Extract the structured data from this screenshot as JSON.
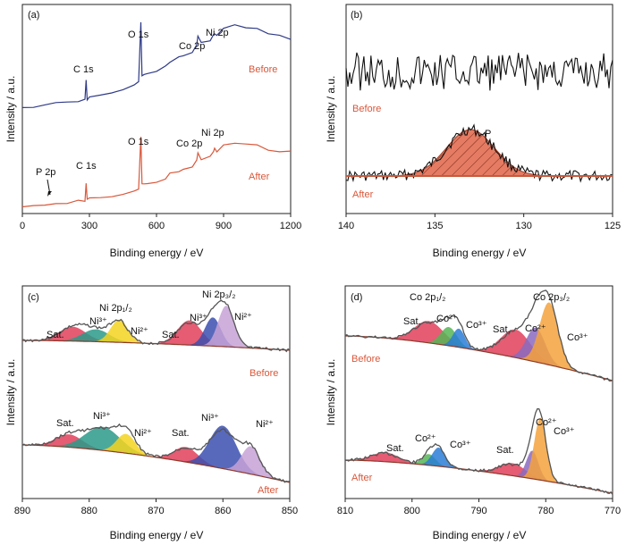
{
  "chart_data": [
    {
      "id": "a",
      "panel_label": "(a)",
      "type": "line",
      "xlabel": "Binding energy / eV",
      "ylabel": "Intensity / a.u.",
      "xlim": [
        0,
        1200
      ],
      "xticks": [
        "0",
        "300",
        "600",
        "900",
        "1200"
      ],
      "series": [
        {
          "name": "Before",
          "color": "#2e3a87",
          "x": [
            0,
            50,
            100,
            150,
            200,
            250,
            280,
            285,
            290,
            300,
            350,
            400,
            450,
            500,
            520,
            530,
            535,
            545,
            560,
            600,
            640,
            660,
            700,
            720,
            760,
            780,
            785,
            800,
            840,
            855,
            860,
            870,
            900,
            950,
            1000,
            1050,
            1100,
            1150,
            1200
          ],
          "y": [
            0.05,
            0.06,
            0.07,
            0.09,
            0.1,
            0.12,
            0.13,
            0.35,
            0.14,
            0.16,
            0.19,
            0.22,
            0.26,
            0.3,
            0.33,
            1.0,
            0.4,
            0.42,
            0.42,
            0.46,
            0.5,
            0.56,
            0.6,
            0.62,
            0.66,
            0.75,
            0.85,
            0.78,
            0.8,
            0.86,
            0.88,
            0.84,
            0.92,
            0.97,
            0.95,
            0.92,
            0.88,
            0.86,
            0.82
          ]
        },
        {
          "name": "After",
          "color": "#d9583b",
          "x": [
            0,
            50,
            100,
            150,
            200,
            250,
            280,
            285,
            290,
            300,
            350,
            400,
            450,
            500,
            520,
            530,
            535,
            545,
            560,
            600,
            640,
            660,
            700,
            720,
            760,
            780,
            785,
            800,
            840,
            855,
            860,
            870,
            900,
            950,
            1000,
            1050,
            1100,
            1150,
            1200
          ],
          "y": [
            0.02,
            0.03,
            0.04,
            0.05,
            0.06,
            0.08,
            0.09,
            0.3,
            0.1,
            0.11,
            0.13,
            0.15,
            0.18,
            0.2,
            0.22,
            0.9,
            0.3,
            0.3,
            0.3,
            0.33,
            0.36,
            0.42,
            0.46,
            0.48,
            0.52,
            0.6,
            0.7,
            0.62,
            0.65,
            0.72,
            0.74,
            0.7,
            0.78,
            0.82,
            0.8,
            0.78,
            0.74,
            0.72,
            0.7
          ]
        }
      ],
      "annotations": {
        "before": [
          "O 1s",
          "C 1s",
          "Co 2p",
          "Ni 2p"
        ],
        "after": [
          "O 1s",
          "C 1s",
          "Co 2p",
          "Ni 2p",
          "P 2p"
        ]
      },
      "condition_labels": [
        "Before",
        "After"
      ]
    },
    {
      "id": "b",
      "panel_label": "(b)",
      "type": "line",
      "xlabel": "Binding energy / eV",
      "ylabel": "Intensity / a.u.",
      "xlim": [
        140,
        125
      ],
      "xticks": [
        "140",
        "135",
        "130",
        "125"
      ],
      "peak_label": "P",
      "peak_center": 133.0,
      "condition_labels": [
        "Before",
        "After"
      ]
    },
    {
      "id": "c",
      "panel_label": "(c)",
      "type": "area",
      "xlabel": "Binding energy / eV",
      "ylabel": "Intensity / a.u.",
      "xlim": [
        890,
        850
      ],
      "xticks": [
        "890",
        "880",
        "870",
        "860",
        "850"
      ],
      "labels": [
        "Sat.",
        "Ni³⁺",
        "Ni 2p₁/₂",
        "Ni²⁺",
        "Sat.",
        "Ni³⁺",
        "Ni 2p₃/₂",
        "Ni²⁺"
      ],
      "labels_after": [
        "Sat.",
        "Ni³⁺",
        "Ni²⁺",
        "Sat.",
        "Ni³⁺",
        "Ni²⁺"
      ],
      "components_before": [
        {
          "name": "Sat.",
          "center": 882.5,
          "height": 0.35,
          "width": 2.0,
          "color": "#e0405a"
        },
        {
          "name": "Ni³⁺",
          "center": 879,
          "height": 0.3,
          "width": 2.0,
          "color": "#2a9a8a"
        },
        {
          "name": "Ni²⁺",
          "center": 875.5,
          "height": 0.55,
          "width": 1.3,
          "color": "#f4d320"
        },
        {
          "name": "Sat.",
          "center": 865,
          "height": 0.6,
          "width": 1.8,
          "color": "#e0405a"
        },
        {
          "name": "Ni³⁺",
          "center": 861.5,
          "height": 0.7,
          "width": 1.2,
          "color": "#3b4fb0"
        },
        {
          "name": "Ni²⁺",
          "center": 859.5,
          "height": 1.0,
          "width": 1.2,
          "color": "#c7a2d6"
        }
      ],
      "components_after": [
        {
          "name": "Sat.",
          "center": 883,
          "height": 0.3,
          "width": 2.0,
          "color": "#e0405a"
        },
        {
          "name": "Ni³⁺",
          "center": 878,
          "height": 0.55,
          "width": 2.6,
          "color": "#2a9a8a"
        },
        {
          "name": "Ni²⁺",
          "center": 874.5,
          "height": 0.45,
          "width": 1.4,
          "color": "#f4d320"
        },
        {
          "name": "Sat.",
          "center": 865.5,
          "height": 0.35,
          "width": 1.8,
          "color": "#e0405a"
        },
        {
          "name": "Ni³⁺",
          "center": 860,
          "height": 1.0,
          "width": 2.0,
          "color": "#3b4fb0"
        },
        {
          "name": "Ni²⁺",
          "center": 855.8,
          "height": 0.65,
          "width": 1.4,
          "color": "#c7a2d6"
        }
      ],
      "condition_labels": [
        "Before",
        "After"
      ]
    },
    {
      "id": "d",
      "panel_label": "(d)",
      "type": "area",
      "xlabel": "Binding energy / eV",
      "ylabel": "Intensity / a.u.",
      "xlim": [
        810,
        770
      ],
      "xticks": [
        "810",
        "800",
        "790",
        "780",
        "770"
      ],
      "labels": [
        "Co 2p₁/₂",
        "Sat.",
        "Co²⁺",
        "Co³⁺",
        "Co 2p₃/₂",
        "Sat.",
        "Co²⁺",
        "Co³⁺"
      ],
      "labels_after": [
        "Sat.",
        "Co²⁺",
        "Co³⁺",
        "Sat.",
        "Co²⁺",
        "Co³⁺"
      ],
      "components_before": [
        {
          "name": "Sat.",
          "center": 797.5,
          "height": 0.35,
          "width": 2.2,
          "color": "#e0405a"
        },
        {
          "name": "Co²⁺",
          "center": 794.5,
          "height": 0.3,
          "width": 1.2,
          "color": "#56b556"
        },
        {
          "name": "Co³⁺",
          "center": 793,
          "height": 0.3,
          "width": 0.9,
          "color": "#2a7cd6"
        },
        {
          "name": "Sat.",
          "center": 784.5,
          "height": 0.45,
          "width": 2.2,
          "color": "#e0405a"
        },
        {
          "name": "Co²⁺",
          "center": 781.5,
          "height": 0.55,
          "width": 1.4,
          "color": "#8a6ac0"
        },
        {
          "name": "Co³⁺",
          "center": 779.5,
          "height": 1.0,
          "width": 1.4,
          "color": "#f4a23c"
        }
      ],
      "components_after": [
        {
          "name": "Sat.",
          "center": 804,
          "height": 0.15,
          "width": 2.0,
          "color": "#e0405a"
        },
        {
          "name": "Co²⁺",
          "center": 797.5,
          "height": 0.18,
          "width": 1.0,
          "color": "#56b556"
        },
        {
          "name": "Co³⁺",
          "center": 796,
          "height": 0.3,
          "width": 1.0,
          "color": "#2a7cd6"
        },
        {
          "name": "Sat.",
          "center": 785,
          "height": 0.2,
          "width": 2.0,
          "color": "#e0405a"
        },
        {
          "name": "Co²⁺",
          "center": 782,
          "height": 0.45,
          "width": 0.9,
          "color": "#8a6ac0"
        },
        {
          "name": "Co³⁺",
          "center": 780.8,
          "height": 1.0,
          "width": 0.9,
          "color": "#f4a23c"
        }
      ],
      "condition_labels": [
        "Before",
        "After"
      ]
    }
  ],
  "colors": {
    "before_line": "#2e3a87",
    "after_line": "#d9583b",
    "envelope": "#555555",
    "background_line": "#8a3a2a",
    "condition_text": "#d9583b"
  }
}
